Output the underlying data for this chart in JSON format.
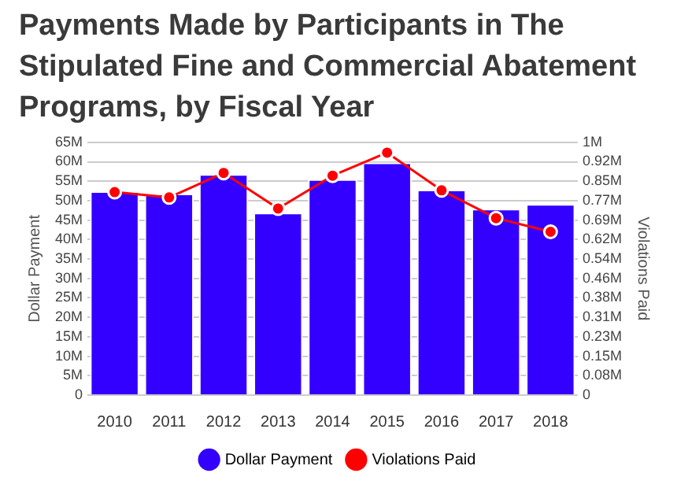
{
  "chart_data": {
    "type": "bar",
    "title": "Payments Made by Participants in The Stipulated Fine and Commercial Abatement Programs, by Fiscal Year",
    "categories": [
      "2010",
      "2011",
      "2012",
      "2013",
      "2014",
      "2015",
      "2016",
      "2017",
      "2018"
    ],
    "ylabel": "Dollar Payment",
    "y2label": "Violations Paid",
    "series": [
      {
        "name": "Dollar Payment",
        "color": "#3300ff",
        "values": [
          52.4,
          51.8,
          56.8,
          46.9,
          55.5,
          59.8,
          52.8,
          47.9,
          49.1
        ]
      },
      {
        "name": "Violations Paid",
        "type": "line",
        "axis": "y2",
        "color": "#ff0000",
        "marker": "circle",
        "values": [
          0.803,
          0.782,
          0.879,
          0.738,
          0.868,
          0.959,
          0.81,
          0.7,
          0.646
        ]
      }
    ],
    "ylim": [
      0,
      65
    ],
    "yticks": [
      {
        "value": 0,
        "label": "0"
      },
      {
        "value": 5,
        "label": "5M"
      },
      {
        "value": 10,
        "label": "10M"
      },
      {
        "value": 15,
        "label": "15M"
      },
      {
        "value": 20,
        "label": "20M"
      },
      {
        "value": 25,
        "label": "25M"
      },
      {
        "value": 30,
        "label": "30M"
      },
      {
        "value": 35,
        "label": "35M"
      },
      {
        "value": 40,
        "label": "40M"
      },
      {
        "value": 45,
        "label": "45M"
      },
      {
        "value": 50,
        "label": "50M"
      },
      {
        "value": 55,
        "label": "55M"
      },
      {
        "value": 60,
        "label": "60M"
      },
      {
        "value": 65,
        "label": "65M"
      }
    ],
    "y2lim": [
      0,
      1
    ],
    "y2ticks": [
      {
        "value": 0,
        "label": "0"
      },
      {
        "value": 0.0769,
        "label": "0.08M"
      },
      {
        "value": 0.1538,
        "label": "0.15M"
      },
      {
        "value": 0.2308,
        "label": "0.23M"
      },
      {
        "value": 0.3077,
        "label": "0.31M"
      },
      {
        "value": 0.3846,
        "label": "0.38M"
      },
      {
        "value": 0.4615,
        "label": "0.46M"
      },
      {
        "value": 0.5385,
        "label": "0.54M"
      },
      {
        "value": 0.6154,
        "label": "0.62M"
      },
      {
        "value": 0.6923,
        "label": "0.69M"
      },
      {
        "value": 0.7692,
        "label": "0.77M"
      },
      {
        "value": 0.8462,
        "label": "0.85M"
      },
      {
        "value": 0.9231,
        "label": "0.92M"
      },
      {
        "value": 1,
        "label": "1M"
      }
    ],
    "grid": "y",
    "legend": "bottom"
  }
}
